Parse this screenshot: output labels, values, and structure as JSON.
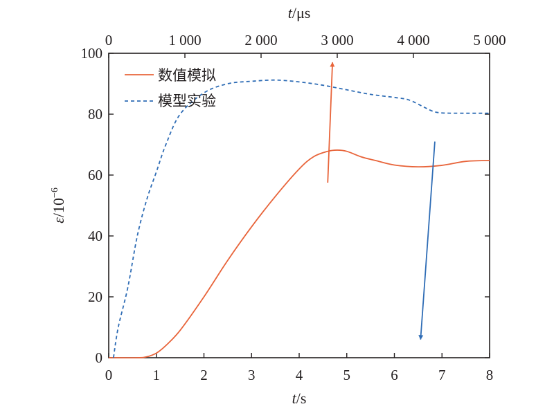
{
  "chart_data": {
    "type": "line",
    "xlabel": {
      "var": "t",
      "unit": "/s"
    },
    "x2label": {
      "var": "t",
      "unit": "/μs"
    },
    "ylabel": {
      "var": "ε",
      "unit": "/10",
      "exp": "−6"
    },
    "xlim": [
      0,
      8
    ],
    "x2lim": [
      0,
      5000
    ],
    "ylim": [
      0,
      100
    ],
    "x_ticks": [
      "0",
      "1",
      "2",
      "3",
      "4",
      "5",
      "6",
      "7",
      "8"
    ],
    "x2_ticks": [
      "0",
      "1 000",
      "2 000",
      "3 000",
      "4 000",
      "5 000"
    ],
    "y_ticks": [
      "0",
      "20",
      "40",
      "60",
      "80",
      "100"
    ],
    "grid": false,
    "legend_position": "top-left",
    "series": [
      {
        "name": "数值模拟",
        "color": "#e8643a",
        "style": "solid",
        "x": [
          0,
          0.6,
          0.8,
          1.0,
          1.2,
          1.5,
          2.0,
          2.5,
          3.0,
          3.5,
          4.0,
          4.3,
          4.6,
          4.8,
          5.0,
          5.3,
          5.6,
          6.0,
          6.5,
          7.0,
          7.5,
          8.0
        ],
        "y": [
          0,
          0,
          0.3,
          1.5,
          4,
          9,
          20,
          32,
          43,
          53,
          62,
          66,
          67.8,
          68.2,
          67.8,
          66,
          64.8,
          63.3,
          62.7,
          63.2,
          64.5,
          64.8
        ]
      },
      {
        "name": "模型实验",
        "color": "#2e6cb5",
        "style": "dashed",
        "x": [
          0.1,
          0.2,
          0.4,
          0.6,
          0.8,
          1.0,
          1.2,
          1.5,
          2.0,
          2.5,
          3.0,
          3.5,
          4.0,
          4.5,
          5.0,
          5.5,
          6.0,
          6.3,
          6.6,
          6.8,
          7.0,
          7.5,
          8.0
        ],
        "y": [
          0,
          10,
          23,
          40,
          52,
          61,
          70,
          80,
          87,
          90,
          90.8,
          91.2,
          90.6,
          89.5,
          88,
          86.5,
          85.5,
          84.7,
          82.5,
          81,
          80.4,
          80.3,
          80.3
        ]
      }
    ],
    "annotations": [
      {
        "type": "arrow",
        "color": "#e8643a",
        "from": [
          4.6,
          57.5
        ],
        "to": [
          4.7,
          97
        ]
      },
      {
        "type": "arrow",
        "color": "#2e6cb5",
        "from": [
          6.85,
          71
        ],
        "to": [
          6.55,
          6
        ]
      }
    ]
  }
}
